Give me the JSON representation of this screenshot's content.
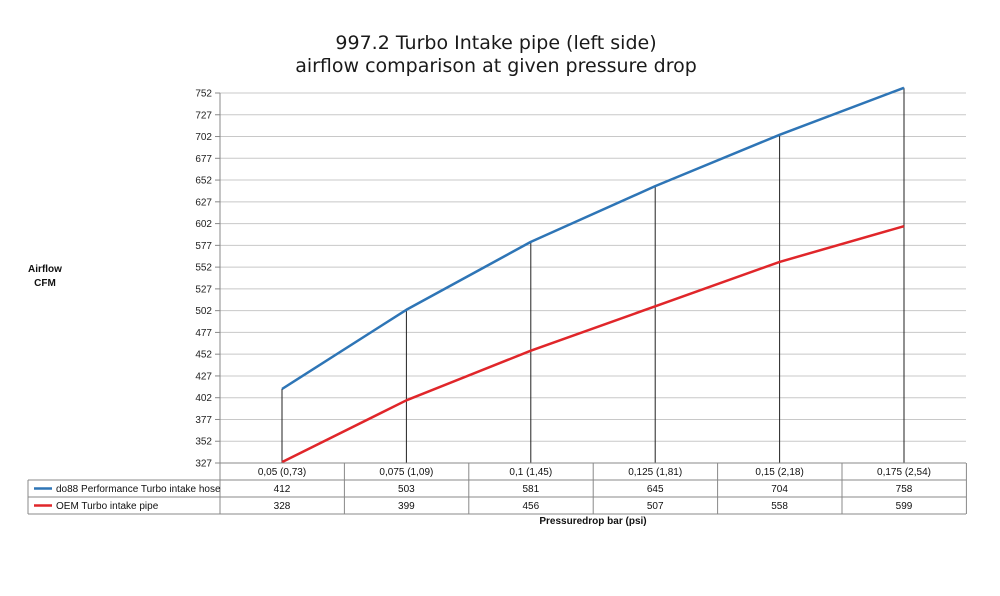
{
  "chart_data": {
    "type": "line",
    "title": "997.2 Turbo Intake pipe (left side)",
    "subtitle": "airflow comparison at given pressure drop",
    "ylabel": [
      "Airflow",
      "CFM"
    ],
    "xlabel": "Pressuredrop bar (psi)",
    "categories": [
      "0,05 (0,73)",
      "0,075 (1,09)",
      "0,1 (1,45)",
      "0,125 (1,81)",
      "0,15 (2,18)",
      "0,175 (2,54)"
    ],
    "ylim": [
      327,
      752
    ],
    "yticks": [
      327,
      352,
      377,
      402,
      427,
      452,
      477,
      502,
      527,
      552,
      577,
      602,
      627,
      652,
      677,
      702,
      727,
      752
    ],
    "grid": true,
    "legend": "data-table",
    "series": [
      {
        "name": "do88 Performance Turbo intake hose",
        "color": "#2e75b6",
        "values": [
          412,
          503,
          581,
          645,
          704,
          758
        ]
      },
      {
        "name": "OEM Turbo intake pipe",
        "color": "#e0262a",
        "values": [
          328,
          399,
          456,
          507,
          558,
          599
        ]
      }
    ]
  }
}
